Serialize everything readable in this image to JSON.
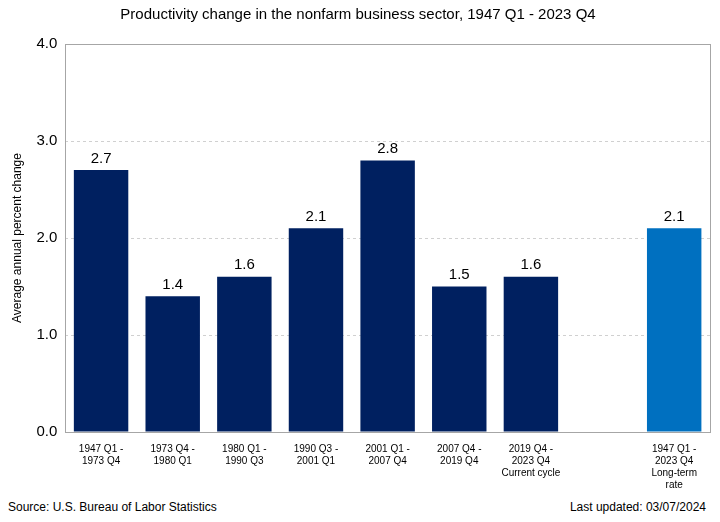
{
  "chart_data": {
    "type": "bar",
    "title": "Productivity change in the nonfarm business sector, 1947 Q1 - 2023 Q4",
    "y_label": "Average annual percent change",
    "categories": [
      [
        "1947 Q1 -",
        "1973 Q4"
      ],
      [
        "1973 Q4 -",
        "1980 Q1"
      ],
      [
        "1980 Q1 -",
        "1990 Q3"
      ],
      [
        "1990 Q3 -",
        "2001 Q1"
      ],
      [
        "2001 Q1 -",
        "2007 Q4"
      ],
      [
        "2007 Q4 -",
        "2019 Q4"
      ],
      [
        "2019 Q4 -",
        "2023 Q4",
        "Current cycle"
      ],
      null,
      [
        "1947 Q1 -",
        "2023 Q4",
        "Long-term",
        "rate"
      ]
    ],
    "values": [
      2.7,
      1.4,
      1.6,
      2.1,
      2.8,
      1.5,
      1.6,
      null,
      2.1
    ],
    "colors": [
      "#002060",
      "#002060",
      "#002060",
      "#002060",
      "#002060",
      "#002060",
      "#002060",
      null,
      "#0070c0"
    ],
    "ylim": [
      0,
      4
    ],
    "yticks": [
      {
        "value": 0,
        "label": "0.0"
      },
      {
        "value": 1,
        "label": "1.0"
      },
      {
        "value": 2,
        "label": "2.0"
      },
      {
        "value": 3,
        "label": "3.0"
      },
      {
        "value": 4,
        "label": "4.0"
      }
    ],
    "grid": true,
    "data_labels": true,
    "annotations": [
      "Source: U.S. Bureau of Labor Statistics",
      "Last updated: 03/07/2024"
    ]
  }
}
